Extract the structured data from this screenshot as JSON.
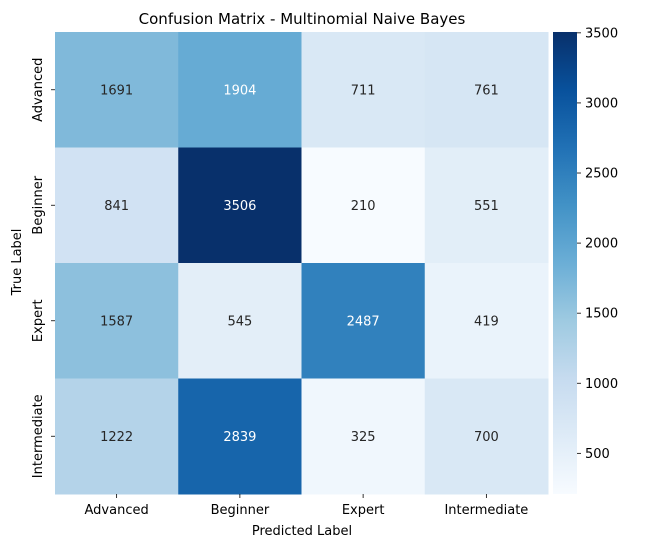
{
  "chart_data": {
    "type": "heatmap",
    "title": "Confusion Matrix - Multinomial Naive Bayes",
    "xlabel": "Predicted Label",
    "ylabel": "True Label",
    "x_categories": [
      "Advanced",
      "Beginner",
      "Expert",
      "Intermediate"
    ],
    "y_categories": [
      "Advanced",
      "Beginner",
      "Expert",
      "Intermediate"
    ],
    "values": [
      [
        1691,
        1904,
        711,
        761
      ],
      [
        841,
        3506,
        210,
        551
      ],
      [
        1587,
        545,
        2487,
        419
      ],
      [
        1222,
        2839,
        325,
        700
      ]
    ],
    "colorscale": "Blues",
    "color_range": [
      210,
      3506
    ],
    "colorbar_ticks": [
      500,
      1000,
      1500,
      2000,
      2500,
      3000,
      3500
    ]
  }
}
